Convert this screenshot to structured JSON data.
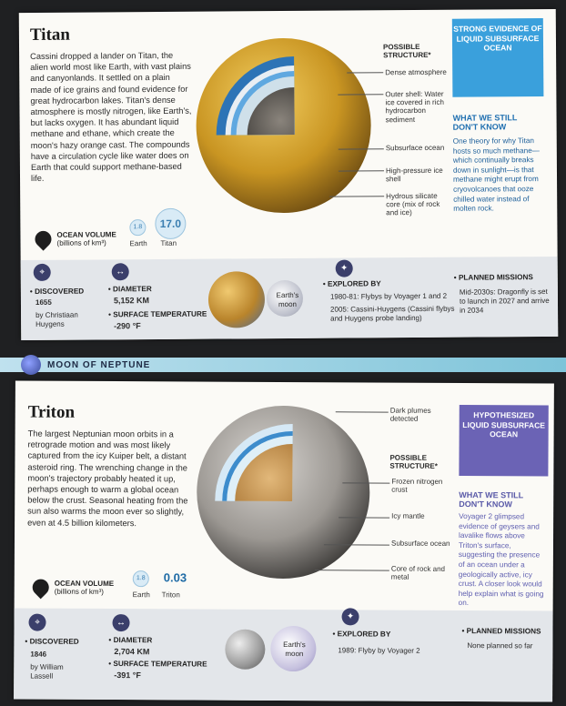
{
  "titan": {
    "title": "Titan",
    "intro": "Cassini dropped a lander on Titan, the alien world most like Earth, with vast plains and canyonlands. It settled on a plain made of ice grains and found evidence for great hydrocarbon lakes. Titan's dense atmosphere is mostly nitrogen, like Earth's, but lacks oxygen. It has abundant liquid methane and ethane, which create the moon's hazy orange cast. The compounds have a circulation cycle like water does on Earth that could support methane-based life.",
    "structure_heading": "POSSIBLE STRUCTURE*",
    "layers": [
      "Dense atmosphere",
      "Outer shell: Water ice covered in rich hydrocarbon sediment",
      "Subsurface ocean",
      "High-pressure ice shell",
      "Hydrous silicate core (mix of rock and ice)"
    ],
    "badge": "STRONG EVIDENCE OF LIQUID SUBSURFACE OCEAN",
    "wwk_heading": "WHAT WE STILL DON'T KNOW",
    "wwk_text": "One theory for why Titan hosts so much methane—which continually breaks down in sunlight—is that methane might erupt from cryovolcanoes that ooze chilled water instead of molten rock.",
    "ocean_volume_label": "OCEAN VOLUME",
    "ocean_volume_unit": "(billions of km³)",
    "earth_value": "1.8",
    "earth_label": "Earth",
    "moon_value": "17.0",
    "moon_label": "Titan",
    "discovered_label": "DISCOVERED",
    "discovered_year": "1655",
    "discovered_by": "by Christiaan Huygens",
    "diameter_label": "DIAMETER",
    "diameter_value": "5,152 KM",
    "temp_label": "SURFACE TEMPERATURE",
    "temp_value": "-290 °F",
    "earths_moon": "Earth's moon",
    "explored_label": "EXPLORED BY",
    "explored_1": "1980-81: Flybys by Voyager 1 and 2",
    "explored_2": "2005: Cassini-Huygens (Cassini flybys and Huygens probe landing)",
    "planned_label": "PLANNED MISSIONS",
    "planned_text": "Mid-2030s: Dragonfly is set to launch in 2027 and arrive in 2034"
  },
  "section_band": "MOON OF NEPTUNE",
  "triton": {
    "title": "Triton",
    "intro": "The largest Neptunian moon orbits in a retrograde motion and was most likely captured from the icy Kuiper belt, a distant asteroid ring. The wrenching change in the moon's trajectory probably heated it up, perhaps enough to warm a global ocean below the crust. Seasonal heating from the sun also warms the moon ever so slightly, even at 4.5 billion kilometers.",
    "plumes": "Dark plumes detected",
    "structure_heading": "POSSIBLE STRUCTURE*",
    "layers": [
      "Frozen nitrogen crust",
      "Icy mantle",
      "Subsurface ocean",
      "Core of rock and metal"
    ],
    "badge": "HYPOTHESIZED LIQUID SUBSURFACE OCEAN",
    "wwk_heading": "WHAT WE STILL DON'T KNOW",
    "wwk_text": "Voyager 2 glimpsed evidence of geysers and lavalike flows above Triton's surface, suggesting the presence of an ocean under a geologically active, icy crust. A closer look would help explain what is going on.",
    "ocean_volume_label": "OCEAN VOLUME",
    "ocean_volume_unit": "(billions of km³)",
    "earth_value": "1.8",
    "earth_label": "Earth",
    "moon_value": "0.03",
    "moon_label": "Triton",
    "discovered_label": "DISCOVERED",
    "discovered_year": "1846",
    "discovered_by": "by William Lassell",
    "diameter_label": "DIAMETER",
    "diameter_value": "2,704 KM",
    "temp_label": "SURFACE TEMPERATURE",
    "temp_value": "-391 °F",
    "earths_moon": "Earth's moon",
    "explored_label": "EXPLORED BY",
    "explored_1": "1989: Flyby by Voyager 2",
    "planned_label": "PLANNED MISSIONS",
    "planned_text": "None planned so far"
  },
  "colors": {
    "badge_blue": "#3aa0dc",
    "badge_purple": "#6b63b5",
    "accent_blue": "#1d6aa5",
    "titan_gold": "#d7a533",
    "triton_gray": "#9a9a9a"
  }
}
